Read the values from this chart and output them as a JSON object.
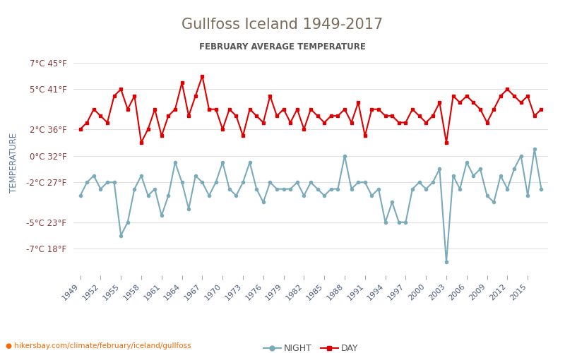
{
  "title": "Gullfoss Iceland 1949-2017",
  "subtitle": "FEBRUARY AVERAGE TEMPERATURE",
  "ylabel": "TEMPERATURE",
  "url": "hikersbay.com/climate/february/iceland/gullfoss",
  "title_color": "#7a6a5a",
  "subtitle_color": "#555555",
  "ylabel_color": "#5a7a9a",
  "axis_label_color": "#8a3a3a",
  "url_color": "#ff6600",
  "background_color": "#ffffff",
  "grid_color": "#e0e0e0",
  "years": [
    1949,
    1950,
    1951,
    1952,
    1953,
    1954,
    1955,
    1956,
    1957,
    1958,
    1959,
    1960,
    1961,
    1962,
    1963,
    1964,
    1965,
    1966,
    1967,
    1968,
    1969,
    1970,
    1971,
    1972,
    1973,
    1974,
    1975,
    1976,
    1977,
    1978,
    1979,
    1980,
    1981,
    1982,
    1983,
    1984,
    1985,
    1986,
    1987,
    1988,
    1989,
    1990,
    1991,
    1992,
    1993,
    1994,
    1995,
    1996,
    1997,
    1998,
    1999,
    2000,
    2001,
    2002,
    2003,
    2004,
    2005,
    2006,
    2007,
    2008,
    2009,
    2010,
    2011,
    2012,
    2013,
    2014,
    2015,
    2016,
    2017
  ],
  "day_temps": [
    2.0,
    2.5,
    3.5,
    3.0,
    2.5,
    4.5,
    5.0,
    3.5,
    4.5,
    1.0,
    2.0,
    3.5,
    1.5,
    3.0,
    3.5,
    5.5,
    3.0,
    4.5,
    6.0,
    3.5,
    3.5,
    2.0,
    3.5,
    3.0,
    1.5,
    3.5,
    3.0,
    2.5,
    4.5,
    3.0,
    3.5,
    2.5,
    3.5,
    2.0,
    3.5,
    3.0,
    2.5,
    3.0,
    3.0,
    3.5,
    2.5,
    4.0,
    1.5,
    3.5,
    3.5,
    3.0,
    3.0,
    2.5,
    2.5,
    3.5,
    3.0,
    2.5,
    3.0,
    4.0,
    1.0,
    4.5,
    4.0,
    4.5,
    4.0,
    3.5,
    2.5,
    3.5,
    4.5,
    5.0,
    4.5,
    4.0,
    4.5,
    3.0,
    3.5
  ],
  "night_temps": [
    -3.0,
    -2.0,
    -1.5,
    -2.5,
    -2.0,
    -2.0,
    -6.0,
    -5.0,
    -2.5,
    -1.5,
    -3.0,
    -2.5,
    -4.5,
    -3.0,
    -0.5,
    -2.0,
    -4.0,
    -1.5,
    -2.0,
    -3.0,
    -2.0,
    -0.5,
    -2.5,
    -3.0,
    -2.0,
    -0.5,
    -2.5,
    -3.5,
    -2.0,
    -2.5,
    -2.5,
    -2.5,
    -2.0,
    -3.0,
    -2.0,
    -2.5,
    -3.0,
    -2.5,
    -2.5,
    0.0,
    -2.5,
    -2.0,
    -2.0,
    -3.0,
    -2.5,
    -5.0,
    -3.5,
    -5.0,
    -5.0,
    -2.5,
    -2.0,
    -2.5,
    -2.0,
    -1.0,
    -8.0,
    -1.5,
    -2.5,
    -0.5,
    -1.5,
    -1.0,
    -3.0,
    -3.5,
    -1.5,
    -2.5,
    -1.0,
    0.0,
    -3.0,
    0.5,
    -2.5
  ],
  "day_color": "#dd0000",
  "night_color": "#7aabba",
  "day_marker": "s",
  "night_marker": "o",
  "marker_size": 3,
  "line_width": 1.5,
  "yticks_c": [
    7,
    5,
    2,
    0,
    -2,
    -5,
    -7
  ],
  "yticks_f": [
    45,
    41,
    36,
    32,
    27,
    23,
    18
  ],
  "xtick_years": [
    1949,
    1952,
    1955,
    1958,
    1961,
    1964,
    1967,
    1970,
    1973,
    1976,
    1979,
    1982,
    1985,
    1988,
    1991,
    1994,
    1997,
    2000,
    2003,
    2006,
    2009,
    2012,
    2015
  ],
  "ylim": [
    -9,
    8
  ],
  "xlim": [
    1948,
    2018
  ]
}
